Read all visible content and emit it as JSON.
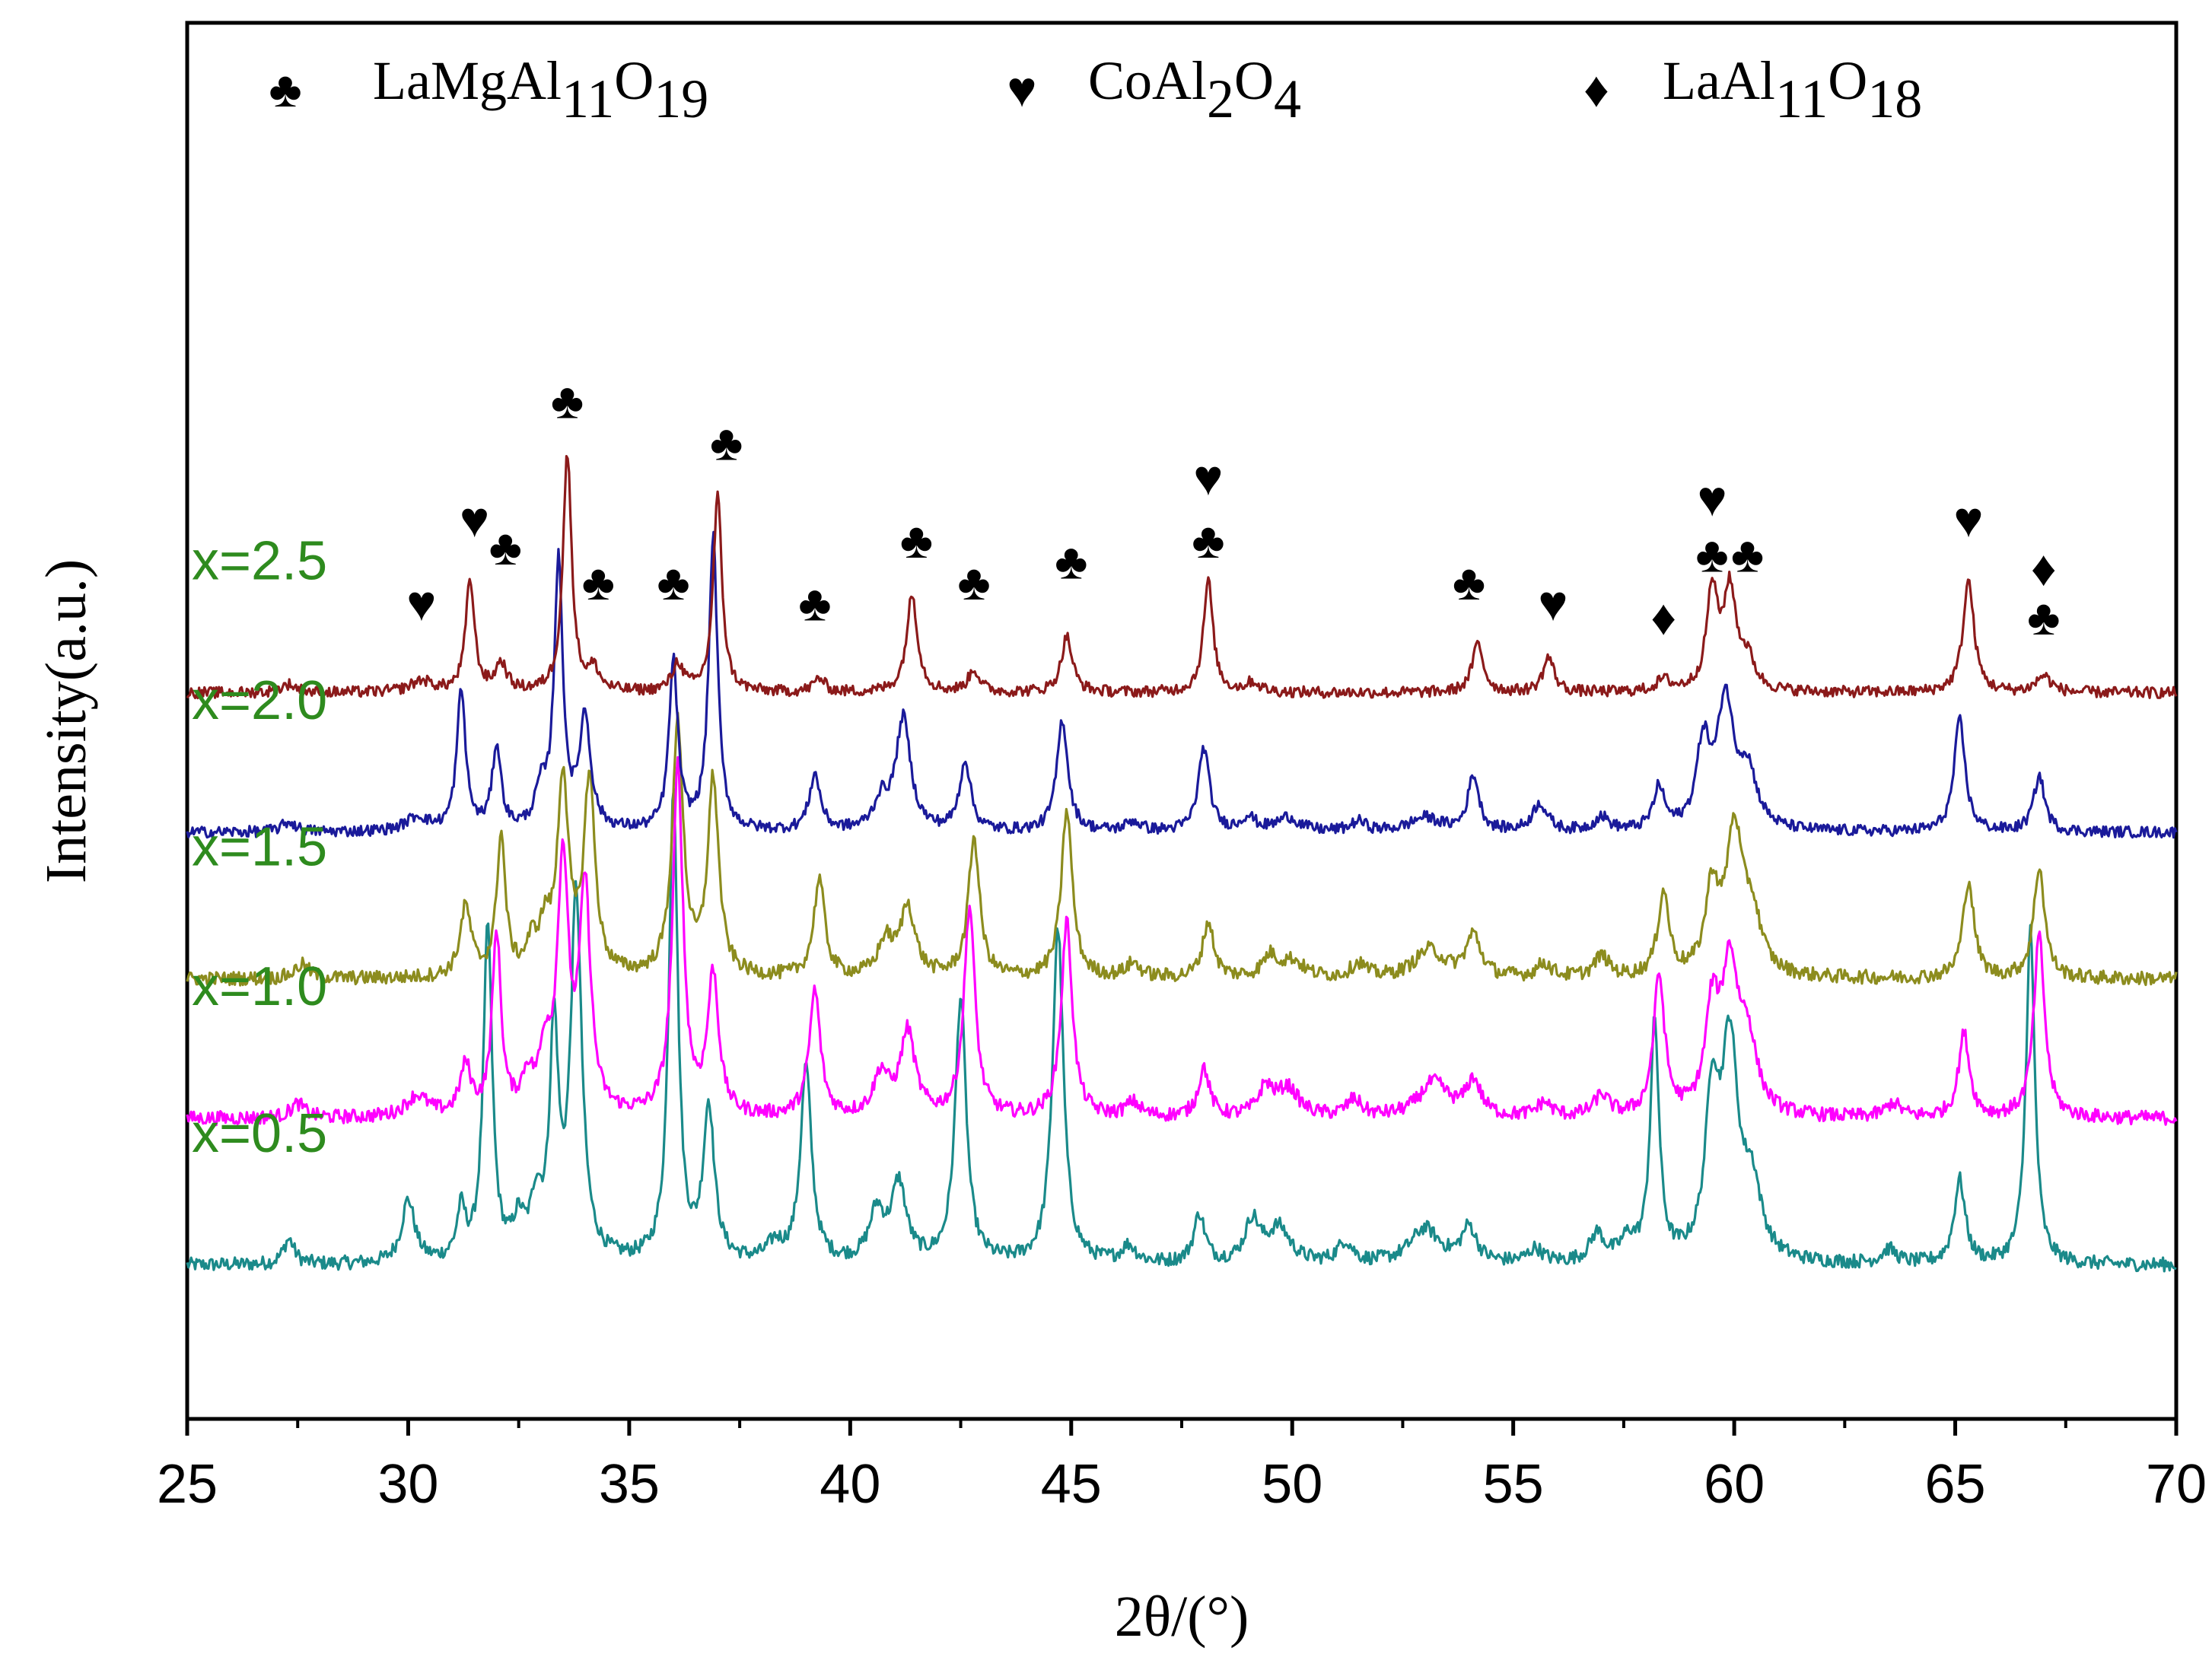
{
  "chart_data": {
    "type": "line",
    "title": "",
    "xlabel": "2θ/(°)",
    "ylabel": "Intensity(a.u.)",
    "xlim": [
      25,
      70
    ],
    "ylim": [
      0,
      100
    ],
    "xticks": [
      25,
      30,
      35,
      40,
      45,
      50,
      55,
      60,
      65,
      70
    ],
    "y_ticks_shown": false,
    "grid": false,
    "legend": {
      "position": "top",
      "entries": [
        {
          "symbol": "♣",
          "base": "LaMgAl",
          "sub1": "11",
          "mid": "O",
          "sub2": "19",
          "label": "LaMgAl11O19"
        },
        {
          "symbol": "♥",
          "base": "CoAl",
          "sub1": "2",
          "mid": "O",
          "sub2": "4",
          "label": "CoAl2O4"
        },
        {
          "symbol": "♦",
          "base": "LaAl",
          "sub1": "11",
          "mid": "O",
          "sub2": "18",
          "label": "LaAl11O18"
        }
      ]
    },
    "series": [
      {
        "name": "x=0.5",
        "color": "#1a8a8a",
        "label_color": "#2e8b1e",
        "baseline": 11,
        "noise": 0.5,
        "peaks": [
          [
            27.3,
            1.8,
            0.15
          ],
          [
            30.0,
            4.5,
            0.18
          ],
          [
            31.2,
            3.5,
            0.12
          ],
          [
            31.8,
            24,
            0.12
          ],
          [
            32.5,
            2.5,
            0.15
          ],
          [
            32.9,
            4,
            0.15
          ],
          [
            33.3,
            16,
            0.12
          ],
          [
            33.8,
            26,
            0.15
          ],
          [
            36.0,
            34,
            0.12
          ],
          [
            36.8,
            11,
            0.15
          ],
          [
            38.3,
            1.2,
            0.2
          ],
          [
            39.0,
            14,
            0.15
          ],
          [
            40.6,
            3.5,
            0.2
          ],
          [
            41.1,
            5.5,
            0.2
          ],
          [
            42.5,
            19,
            0.15
          ],
          [
            44.7,
            24,
            0.15
          ],
          [
            46.3,
            1.2,
            0.2
          ],
          [
            47.9,
            3.5,
            0.15
          ],
          [
            49.1,
            3,
            0.2
          ],
          [
            49.7,
            2.5,
            0.3
          ],
          [
            51.2,
            1.5,
            0.2
          ],
          [
            53.0,
            2.5,
            0.4
          ],
          [
            54.0,
            2.5,
            0.2
          ],
          [
            55.5,
            1,
            0.2
          ],
          [
            56.9,
            2,
            0.2
          ],
          [
            57.6,
            1.5,
            0.2
          ],
          [
            58.2,
            17,
            0.12
          ],
          [
            59.5,
            11,
            0.18
          ],
          [
            59.9,
            15,
            0.22
          ],
          [
            60.4,
            5,
            0.25
          ],
          [
            63.5,
            1,
            0.2
          ],
          [
            65.1,
            6,
            0.15
          ],
          [
            66.7,
            24,
            0.12
          ]
        ]
      },
      {
        "name": "x=1.0",
        "color": "#ff00ff",
        "label_color": "#2e8b1e",
        "baseline": 21.5,
        "noise": 0.5,
        "peaks": [
          [
            27.5,
            1,
            0.2
          ],
          [
            30.2,
            1.5,
            0.3
          ],
          [
            31.3,
            3.5,
            0.15
          ],
          [
            32.0,
            13,
            0.12
          ],
          [
            32.7,
            2.5,
            0.15
          ],
          [
            33.1,
            4,
            0.15
          ],
          [
            33.5,
            18,
            0.15
          ],
          [
            34.0,
            16,
            0.15
          ],
          [
            36.1,
            25,
            0.14
          ],
          [
            36.9,
            10,
            0.15
          ],
          [
            39.2,
            9,
            0.15
          ],
          [
            40.7,
            3,
            0.2
          ],
          [
            41.3,
            6,
            0.2
          ],
          [
            42.7,
            15,
            0.15
          ],
          [
            44.9,
            14,
            0.15
          ],
          [
            46.4,
            1,
            0.2
          ],
          [
            48.0,
            3.5,
            0.15
          ],
          [
            49.4,
            2,
            0.2
          ],
          [
            49.9,
            2,
            0.3
          ],
          [
            51.4,
            1.2,
            0.2
          ],
          [
            53.2,
            2.5,
            0.4
          ],
          [
            54.1,
            2.5,
            0.2
          ],
          [
            55.7,
            1,
            0.2
          ],
          [
            57.0,
            1.5,
            0.2
          ],
          [
            58.3,
            10,
            0.15
          ],
          [
            59.5,
            7,
            0.18
          ],
          [
            59.9,
            10,
            0.22
          ],
          [
            60.3,
            5,
            0.25
          ],
          [
            63.6,
            1,
            0.2
          ],
          [
            65.2,
            6,
            0.15
          ],
          [
            66.9,
            13,
            0.15
          ]
        ]
      },
      {
        "name": "x=1.5",
        "color": "#8c8c1e",
        "label_color": "#2e8b1e",
        "baseline": 31.5,
        "noise": 0.5,
        "peaks": [
          [
            27.6,
            1,
            0.2
          ],
          [
            31.3,
            5,
            0.15
          ],
          [
            32.1,
            10,
            0.12
          ],
          [
            32.8,
            2,
            0.15
          ],
          [
            33.1,
            3,
            0.15
          ],
          [
            33.5,
            14,
            0.15
          ],
          [
            34.1,
            14,
            0.15
          ],
          [
            36.1,
            18,
            0.15
          ],
          [
            36.9,
            14,
            0.15
          ],
          [
            39.3,
            7,
            0.15
          ],
          [
            40.8,
            2.5,
            0.2
          ],
          [
            41.3,
            5,
            0.2
          ],
          [
            42.8,
            10,
            0.15
          ],
          [
            44.9,
            12,
            0.15
          ],
          [
            46.4,
            1,
            0.2
          ],
          [
            48.1,
            4,
            0.15
          ],
          [
            49.5,
            1.5,
            0.2
          ],
          [
            50.0,
            1.2,
            0.3
          ],
          [
            51.5,
            1,
            0.2
          ],
          [
            53.1,
            2,
            0.4
          ],
          [
            54.1,
            3,
            0.2
          ],
          [
            55.7,
            1,
            0.2
          ],
          [
            57.0,
            1.5,
            0.2
          ],
          [
            58.4,
            6,
            0.15
          ],
          [
            59.5,
            6,
            0.18
          ],
          [
            60.0,
            10,
            0.22
          ],
          [
            60.4,
            4,
            0.25
          ],
          [
            65.3,
            7,
            0.15
          ],
          [
            66.9,
            8,
            0.15
          ]
        ]
      },
      {
        "name": "x=2.0",
        "color": "#1a1a9a",
        "label_color": "#2e8b1e",
        "baseline": 42,
        "noise": 0.4,
        "peaks": [
          [
            27.3,
            0.7,
            0.2
          ],
          [
            30.2,
            1,
            0.3
          ],
          [
            31.2,
            10,
            0.12
          ],
          [
            32.0,
            6,
            0.12
          ],
          [
            33.0,
            2.5,
            0.15
          ],
          [
            33.4,
            19,
            0.12
          ],
          [
            34.0,
            8,
            0.15
          ],
          [
            36.0,
            12,
            0.12
          ],
          [
            36.9,
            21,
            0.12
          ],
          [
            39.2,
            4,
            0.15
          ],
          [
            40.7,
            2,
            0.2
          ],
          [
            41.2,
            8,
            0.2
          ],
          [
            42.6,
            5,
            0.15
          ],
          [
            44.8,
            8,
            0.15
          ],
          [
            46.4,
            0.7,
            0.2
          ],
          [
            48.0,
            6,
            0.15
          ],
          [
            49.0,
            1,
            0.2
          ],
          [
            49.9,
            1,
            0.3
          ],
          [
            51.5,
            0.7,
            0.2
          ],
          [
            53.0,
            1,
            0.4
          ],
          [
            54.1,
            4,
            0.15
          ],
          [
            55.6,
            2,
            0.2
          ],
          [
            57.0,
            1,
            0.2
          ],
          [
            58.3,
            3,
            0.15
          ],
          [
            59.3,
            6,
            0.18
          ],
          [
            59.8,
            9,
            0.22
          ],
          [
            60.3,
            4,
            0.25
          ],
          [
            65.1,
            8,
            0.15
          ],
          [
            66.9,
            4,
            0.15
          ]
        ]
      },
      {
        "name": "x=2.5",
        "color": "#8b1a1a",
        "label_color": "#2e8b1e",
        "baseline": 52,
        "noise": 0.4,
        "peaks": [
          [
            27.3,
            0.6,
            0.2
          ],
          [
            30.3,
            0.8,
            0.3
          ],
          [
            31.4,
            8,
            0.12
          ],
          [
            32.1,
            2,
            0.15
          ],
          [
            33.6,
            17,
            0.12
          ],
          [
            34.2,
            1.5,
            0.15
          ],
          [
            36.1,
            2,
            0.15
          ],
          [
            37.0,
            14,
            0.12
          ],
          [
            39.3,
            1,
            0.15
          ],
          [
            41.4,
            7,
            0.15
          ],
          [
            42.8,
            1.6,
            0.15
          ],
          [
            44.9,
            4,
            0.15
          ],
          [
            48.1,
            8,
            0.13
          ],
          [
            49.1,
            0.7,
            0.2
          ],
          [
            54.2,
            3.5,
            0.15
          ],
          [
            55.8,
            2.5,
            0.15
          ],
          [
            58.4,
            0.8,
            0.2
          ],
          [
            59.5,
            7,
            0.15
          ],
          [
            59.9,
            7,
            0.18
          ],
          [
            60.3,
            2,
            0.2
          ],
          [
            65.3,
            8,
            0.15
          ],
          [
            67.0,
            1.2,
            0.2
          ]
        ]
      }
    ],
    "peak_markers": [
      {
        "x": 30.3,
        "level": 58.5,
        "symbol": "♥"
      },
      {
        "x": 31.5,
        "level": 64.5,
        "symbol": "♥"
      },
      {
        "x": 32.2,
        "level": 62.5,
        "symbol": "♣"
      },
      {
        "x": 33.6,
        "level": 73,
        "symbol": "♣"
      },
      {
        "x": 34.3,
        "level": 60,
        "symbol": "♣"
      },
      {
        "x": 36.0,
        "level": 60,
        "symbol": "♣"
      },
      {
        "x": 37.2,
        "level": 70,
        "symbol": "♣"
      },
      {
        "x": 39.2,
        "level": 58.5,
        "symbol": "♣"
      },
      {
        "x": 41.5,
        "level": 63,
        "symbol": "♣"
      },
      {
        "x": 42.8,
        "level": 60,
        "symbol": "♣"
      },
      {
        "x": 45.0,
        "level": 61.5,
        "symbol": "♣"
      },
      {
        "x": 48.1,
        "level": 67.5,
        "symbol": "♥"
      },
      {
        "x": 48.1,
        "level": 63,
        "symbol": "♣"
      },
      {
        "x": 54.0,
        "level": 60,
        "symbol": "♣"
      },
      {
        "x": 55.9,
        "level": 58.5,
        "symbol": "♥"
      },
      {
        "x": 58.4,
        "level": 57.5,
        "symbol": "♦"
      },
      {
        "x": 59.5,
        "level": 66,
        "symbol": "♥"
      },
      {
        "x": 59.5,
        "level": 62,
        "symbol": "♣"
      },
      {
        "x": 60.3,
        "level": 62,
        "symbol": "♣"
      },
      {
        "x": 65.3,
        "level": 64.5,
        "symbol": "♥"
      },
      {
        "x": 67.0,
        "level": 61,
        "symbol": "♦"
      },
      {
        "x": 67.0,
        "level": 57.5,
        "symbol": "♣"
      }
    ]
  }
}
